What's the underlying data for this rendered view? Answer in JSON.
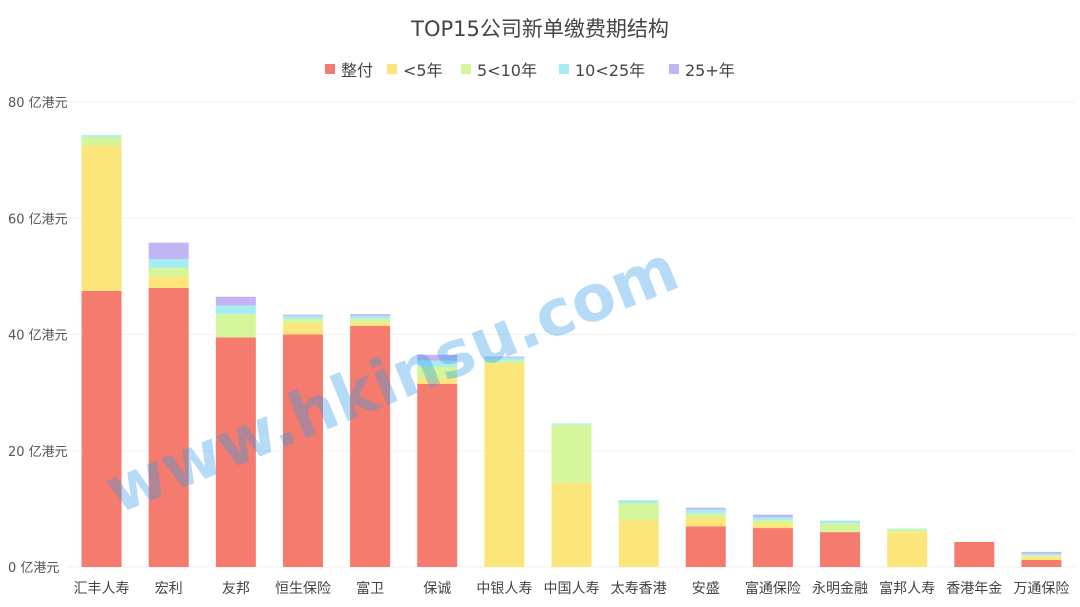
{
  "chart_data": {
    "type": "bar",
    "stacked": true,
    "title": "TOP15公司新单缴费期结构",
    "xlabel": "",
    "ylabel": "",
    "ylim": [
      0,
      80
    ],
    "yticks": [
      "0 亿港元",
      "20 亿港元",
      "40 亿港元",
      "60 亿港元",
      "80 亿港元"
    ],
    "grid": false,
    "legend_position": "top",
    "categories": [
      "汇丰人寿",
      "宏利",
      "友邦",
      "恒生保险",
      "富卫",
      "保诚",
      "中银人寿",
      "中国人寿",
      "太寿香港",
      "安盛",
      "富通保险",
      "永明金融",
      "富邦人寿",
      "香港年金",
      "万通保险"
    ],
    "series": [
      {
        "name": "整付",
        "color": "#f47b6e",
        "values": [
          47.5,
          48,
          39.5,
          40,
          41.5,
          31.5,
          0,
          0,
          0,
          7,
          6.7,
          6,
          0,
          4.3,
          1.2
        ]
      },
      {
        "name": "<5年",
        "color": "#fce57a",
        "values": [
          25,
          2,
          0,
          2,
          0.5,
          1,
          35,
          14.5,
          8,
          1.5,
          0.8,
          0,
          6,
          0,
          0.5
        ]
      },
      {
        "name": "5<10年",
        "color": "#d4f59a",
        "values": [
          1.5,
          1.5,
          4,
          0.7,
          0.7,
          2,
          0.5,
          10,
          3,
          0.7,
          0.6,
          1.5,
          0.5,
          0,
          0.3
        ]
      },
      {
        "name": "10<25年",
        "color": "#a6ecf5",
        "values": [
          0.3,
          1.5,
          1.5,
          0.5,
          0.5,
          1,
          0.5,
          0.2,
          0.5,
          0.7,
          0.5,
          0.5,
          0.1,
          0,
          0.3
        ]
      },
      {
        "name": "25+年",
        "color": "#c4b4f4",
        "values": [
          0,
          2.8,
          1.5,
          0.2,
          0.3,
          1,
          0.2,
          0,
          0,
          0.3,
          0.4,
          0,
          0,
          0,
          0.3
        ]
      }
    ]
  },
  "watermark": "www.hkinsu.com"
}
